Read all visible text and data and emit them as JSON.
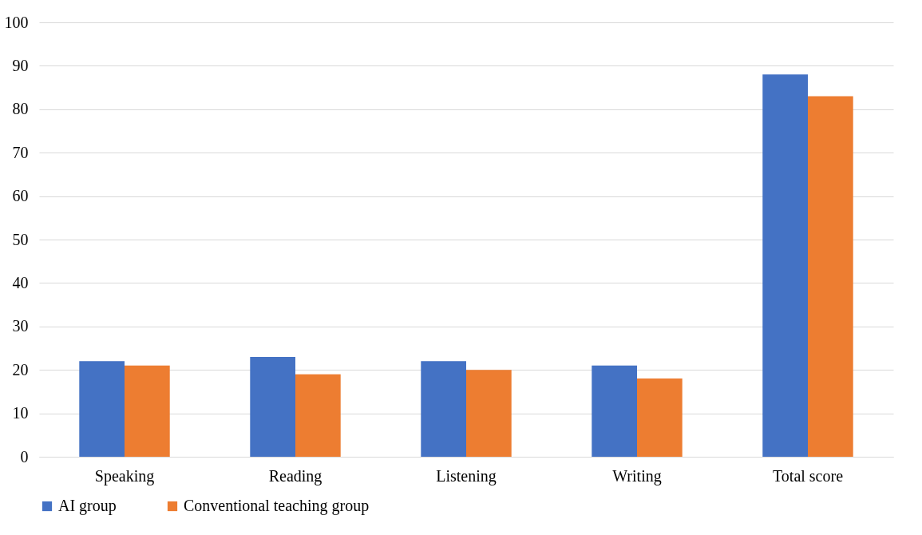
{
  "chart_data": {
    "type": "bar",
    "categories": [
      "Speaking",
      "Reading",
      "Listening",
      "Writing",
      "Total score"
    ],
    "series": [
      {
        "name": "AI group",
        "color": "#4472c4",
        "values": [
          22,
          23,
          22,
          21,
          88
        ]
      },
      {
        "name": "Conventional teaching group",
        "color": "#ed7d31",
        "values": [
          21,
          19,
          20,
          18,
          83
        ]
      }
    ],
    "ylim": [
      0,
      100
    ],
    "yticks": [
      0,
      10,
      20,
      30,
      40,
      50,
      60,
      70,
      80,
      90,
      100
    ],
    "grid": "y",
    "legend": "bottom"
  }
}
